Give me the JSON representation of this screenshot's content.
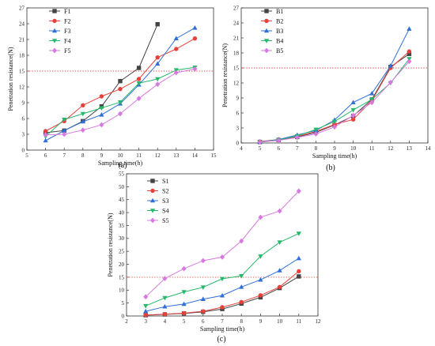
{
  "chart_data": [
    {
      "panel_label": "(a)",
      "type": "line",
      "xlabel": "Sampling time(h)",
      "ylabel": "Penetration resistance(N)",
      "xlim": [
        5,
        15
      ],
      "ylim": [
        0,
        27
      ],
      "xticks": [
        5,
        6,
        7,
        8,
        9,
        10,
        11,
        12,
        13,
        14,
        15
      ],
      "yticks": [
        0,
        3,
        6,
        9,
        12,
        15,
        18,
        21,
        24,
        27
      ],
      "threshold": 15,
      "legend_position": "top-left",
      "series": [
        {
          "name": "F1",
          "color": "#444444",
          "marker": "square",
          "x": [
            6,
            7,
            8,
            9,
            10,
            11,
            12
          ],
          "y": [
            3.3,
            3.7,
            5.5,
            8.3,
            13.1,
            15.6,
            23.9
          ]
        },
        {
          "name": "F2",
          "color": "#e8413c",
          "marker": "circle",
          "x": [
            6,
            7,
            8,
            9,
            10,
            11,
            12,
            13,
            14
          ],
          "y": [
            3.6,
            5.5,
            8.5,
            10.2,
            11.6,
            13.5,
            17.6,
            19.2,
            21.2
          ]
        },
        {
          "name": "F3",
          "color": "#2f6fd6",
          "marker": "triangle-up",
          "x": [
            6,
            7,
            8,
            9,
            10,
            11,
            12,
            13,
            14
          ],
          "y": [
            1.8,
            3.7,
            5.4,
            6.7,
            8.8,
            12.4,
            16.4,
            21.2,
            23.2
          ]
        },
        {
          "name": "F4",
          "color": "#25b86a",
          "marker": "triangle-down",
          "x": [
            6,
            7,
            8,
            9,
            10,
            11,
            12,
            13,
            14
          ],
          "y": [
            2.6,
            5.8,
            6.9,
            8.0,
            9.1,
            12.7,
            13.5,
            15.2,
            15.7
          ]
        },
        {
          "name": "F5",
          "color": "#d77ae0",
          "marker": "diamond",
          "x": [
            6,
            7,
            8,
            9,
            10,
            11,
            12,
            13,
            14
          ],
          "y": [
            2.9,
            3.0,
            3.8,
            4.8,
            6.9,
            9.8,
            12.5,
            14.7,
            15.4
          ]
        }
      ]
    },
    {
      "panel_label": "(b)",
      "type": "line",
      "xlabel": "Sampling time(h)",
      "ylabel": "Penetration resistance(N)",
      "xlim": [
        4,
        14
      ],
      "ylim": [
        0,
        27
      ],
      "xticks": [
        4,
        5,
        6,
        7,
        8,
        9,
        10,
        11,
        12,
        13,
        14
      ],
      "yticks": [
        0,
        3,
        6,
        9,
        12,
        15,
        18,
        21,
        24,
        27
      ],
      "threshold": 15,
      "legend_position": "top-left",
      "series": [
        {
          "name": "B1",
          "color": "#444444",
          "marker": "square",
          "x": [
            5,
            6,
            7,
            8,
            9,
            10,
            11,
            12,
            13
          ],
          "y": [
            0.2,
            0.6,
            1.2,
            2.1,
            3.6,
            5.4,
            8.7,
            15.2,
            17.8
          ]
        },
        {
          "name": "B2",
          "color": "#e8413c",
          "marker": "circle",
          "x": [
            5,
            6,
            7,
            8,
            9,
            10,
            11,
            12,
            13
          ],
          "y": [
            0.3,
            0.7,
            1.3,
            2.3,
            3.7,
            4.7,
            8.5,
            15.0,
            18.3
          ]
        },
        {
          "name": "B3",
          "color": "#2f6fd6",
          "marker": "triangle-up",
          "x": [
            5,
            6,
            7,
            8,
            9,
            10,
            11,
            12,
            13
          ],
          "y": [
            0.2,
            0.7,
            1.6,
            2.5,
            4.6,
            8.1,
            9.9,
            15.4,
            22.8
          ]
        },
        {
          "name": "B4",
          "color": "#25b86a",
          "marker": "triangle-down",
          "x": [
            5,
            6,
            7,
            8,
            9,
            10,
            11,
            12,
            13
          ],
          "y": [
            0.2,
            0.6,
            1.4,
            2.7,
            4.3,
            6.6,
            8.7,
            12.0,
            16.8
          ]
        },
        {
          "name": "B5",
          "color": "#d77ae0",
          "marker": "diamond",
          "x": [
            5,
            6,
            7,
            8,
            9,
            10,
            11,
            12,
            13
          ],
          "y": [
            0.2,
            0.5,
            1.1,
            1.8,
            3.2,
            5.5,
            8.1,
            12.1,
            16.3
          ]
        }
      ]
    },
    {
      "panel_label": "(c)",
      "type": "line",
      "xlabel": "Sampling time(h)",
      "ylabel": "Penetration resistance(N)",
      "xlim": [
        2,
        12
      ],
      "ylim": [
        0,
        55
      ],
      "xticks": [
        2,
        3,
        4,
        5,
        6,
        7,
        8,
        9,
        10,
        11,
        12
      ],
      "yticks": [
        0,
        5,
        10,
        15,
        20,
        25,
        30,
        35,
        40,
        45,
        50,
        55
      ],
      "threshold": 15,
      "legend_position": "top-left",
      "series": [
        {
          "name": "S1",
          "color": "#444444",
          "marker": "square",
          "x": [
            3,
            4,
            5,
            6,
            7,
            8,
            9,
            10,
            11
          ],
          "y": [
            0.3,
            0.6,
            1.0,
            1.6,
            2.7,
            4.8,
            7.2,
            10.8,
            15.3
          ]
        },
        {
          "name": "S2",
          "color": "#e8413c",
          "marker": "circle",
          "x": [
            3,
            4,
            5,
            6,
            7,
            8,
            9,
            10,
            11
          ],
          "y": [
            0.4,
            0.7,
            1.1,
            1.8,
            3.4,
            5.4,
            8.0,
            11.2,
            17.3
          ]
        },
        {
          "name": "S3",
          "color": "#2f6fd6",
          "marker": "triangle-up",
          "x": [
            3,
            4,
            5,
            6,
            7,
            8,
            9,
            10,
            11
          ],
          "y": [
            1.8,
            3.6,
            4.6,
            6.5,
            7.9,
            11.2,
            14.0,
            17.6,
            22.3
          ]
        },
        {
          "name": "S4",
          "color": "#25b86a",
          "marker": "triangle-down",
          "x": [
            3,
            4,
            5,
            6,
            7,
            8,
            9,
            10,
            11
          ],
          "y": [
            3.9,
            7.0,
            9.3,
            11.1,
            14.4,
            15.5,
            23.1,
            28.5,
            31.9
          ]
        },
        {
          "name": "S5",
          "color": "#d77ae0",
          "marker": "diamond",
          "x": [
            3,
            4,
            5,
            6,
            7,
            8,
            9,
            10,
            11
          ],
          "y": [
            7.4,
            14.5,
            18.3,
            21.4,
            22.8,
            29.0,
            38.2,
            40.6,
            48.3
          ]
        }
      ]
    }
  ]
}
